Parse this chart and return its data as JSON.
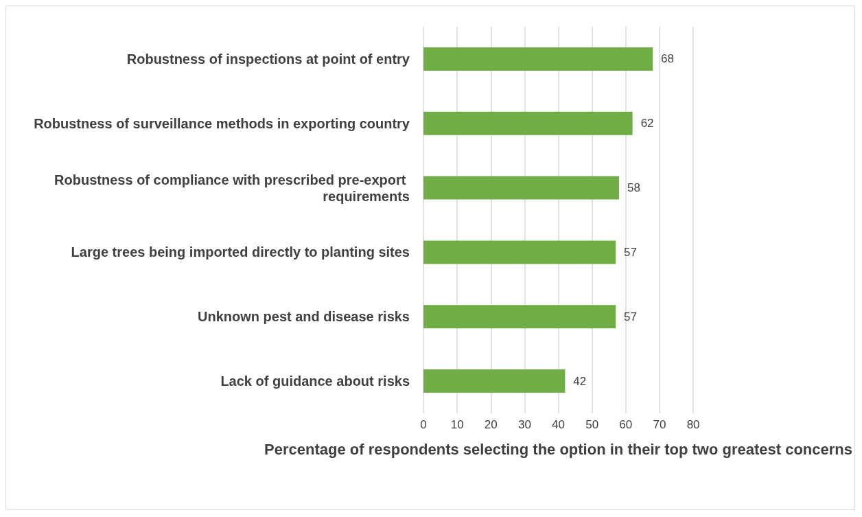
{
  "chart_data": {
    "type": "bar",
    "orientation": "horizontal",
    "categories": [
      "Robustness of inspections at point of entry",
      "Robustness of surveillance methods in exporting country",
      "Robustness of compliance with prescribed pre-export requirements",
      "Large trees being imported directly to planting sites",
      "Unknown pest and disease risks",
      "Lack of guidance about risks"
    ],
    "values": [
      68,
      62,
      58,
      57,
      57,
      42
    ],
    "color": "#70ad47",
    "xlabel": "Percentage of respondents selecting the option in their top two greatest concerns",
    "xlim": [
      0,
      80
    ],
    "xticks": [
      0,
      10,
      20,
      30,
      40,
      50,
      60,
      70,
      80
    ],
    "grid": "x",
    "data_labels": true
  }
}
